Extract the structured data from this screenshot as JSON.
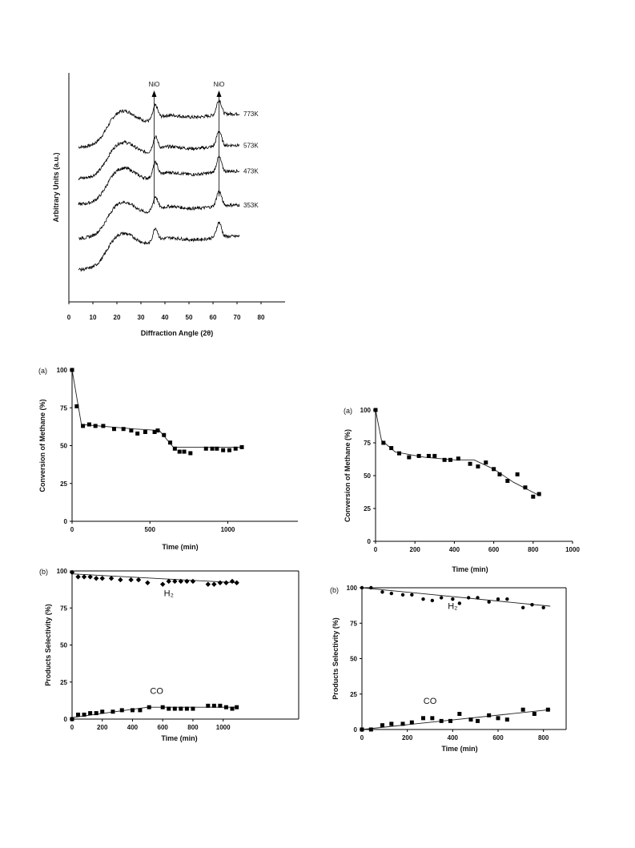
{
  "chart_data": [
    {
      "id": "xrd",
      "type": "line",
      "xlabel": "Diffraction Angle (2θ)",
      "ylabel": "Arbitrary Units (a.u.)",
      "xticks": [
        0,
        10,
        20,
        30,
        40,
        50,
        60,
        70,
        80
      ],
      "xlim": [
        0,
        90
      ],
      "peak_labels": [
        {
          "text": "NiO",
          "x": 35.5
        },
        {
          "text": "NiO",
          "x": 62.5
        }
      ],
      "series": [
        {
          "name": "773K",
          "offset": 4.5
        },
        {
          "name": "573K",
          "offset": 3.35
        },
        {
          "name": "473K",
          "offset": 2.4
        },
        {
          "name": "353K",
          "offset": 1.15
        },
        {
          "name": "",
          "offset": 0
        }
      ]
    },
    {
      "id": "conv_a_left",
      "type": "scatter",
      "panel_label": "(a)",
      "xlabel": "Time (min)",
      "ylabel": "Conversion of Methane (%)",
      "xlim": [
        0,
        1450
      ],
      "ylim": [
        0,
        100
      ],
      "xticks": [
        0,
        500,
        1000
      ],
      "yticks": [
        0,
        25,
        50,
        75,
        100
      ],
      "points": [
        [
          0,
          100
        ],
        [
          30,
          76
        ],
        [
          70,
          63
        ],
        [
          110,
          64
        ],
        [
          150,
          63
        ],
        [
          200,
          63
        ],
        [
          270,
          61
        ],
        [
          330,
          61
        ],
        [
          380,
          60
        ],
        [
          420,
          58
        ],
        [
          470,
          59
        ],
        [
          530,
          59
        ],
        [
          550,
          60
        ],
        [
          590,
          57
        ],
        [
          630,
          52
        ],
        [
          660,
          48
        ],
        [
          690,
          46
        ],
        [
          720,
          46
        ],
        [
          760,
          45
        ],
        [
          860,
          48
        ],
        [
          900,
          48
        ],
        [
          930,
          48
        ],
        [
          970,
          47
        ],
        [
          1010,
          47
        ],
        [
          1050,
          48
        ],
        [
          1090,
          49
        ]
      ],
      "fit": [
        [
          0,
          100
        ],
        [
          60,
          64
        ],
        [
          400,
          61
        ],
        [
          560,
          60
        ],
        [
          650,
          49
        ],
        [
          1100,
          49
        ]
      ]
    },
    {
      "id": "conv_a_right",
      "type": "scatter",
      "panel_label": "(a)",
      "xlabel": "Time (min)",
      "ylabel": "Conversion of Methane (%)",
      "xlim": [
        0,
        1000
      ],
      "ylim": [
        0,
        100
      ],
      "xticks": [
        0,
        200,
        400,
        600,
        800,
        1000
      ],
      "yticks": [
        0,
        25,
        50,
        75,
        100
      ],
      "points": [
        [
          0,
          100
        ],
        [
          40,
          75
        ],
        [
          80,
          71
        ],
        [
          120,
          67
        ],
        [
          170,
          64
        ],
        [
          220,
          65
        ],
        [
          270,
          65
        ],
        [
          300,
          65
        ],
        [
          350,
          62
        ],
        [
          380,
          62
        ],
        [
          420,
          63
        ],
        [
          480,
          59
        ],
        [
          520,
          57
        ],
        [
          560,
          60
        ],
        [
          600,
          55
        ],
        [
          630,
          51
        ],
        [
          670,
          46
        ],
        [
          720,
          51
        ],
        [
          760,
          41
        ],
        [
          800,
          34
        ],
        [
          830,
          36
        ]
      ],
      "fit": [
        [
          0,
          100
        ],
        [
          30,
          77
        ],
        [
          100,
          68
        ],
        [
          250,
          64
        ],
        [
          400,
          62
        ],
        [
          500,
          62
        ],
        [
          600,
          55
        ],
        [
          700,
          45
        ],
        [
          830,
          35
        ]
      ]
    },
    {
      "id": "sel_b_left",
      "type": "scatter",
      "panel_label": "(b)",
      "xlabel": "Time (min)",
      "ylabel": "Products Selectivity (%)",
      "xlim": [
        0,
        1500
      ],
      "ylim": [
        0,
        100
      ],
      "xticks": [
        0,
        200,
        400,
        600,
        800,
        1000
      ],
      "yticks": [
        0,
        25,
        50,
        75,
        100
      ],
      "annotations": [
        {
          "text": "H₂",
          "x": 640,
          "y": 83
        },
        {
          "text": "CO",
          "x": 560,
          "y": 17
        }
      ],
      "series": [
        {
          "name": "H2",
          "marker": "diamond",
          "points": [
            [
              0,
              99
            ],
            [
              40,
              96
            ],
            [
              80,
              96
            ],
            [
              120,
              96
            ],
            [
              160,
              95
            ],
            [
              200,
              95
            ],
            [
              260,
              95
            ],
            [
              320,
              94
            ],
            [
              390,
              94
            ],
            [
              440,
              94
            ],
            [
              500,
              92
            ],
            [
              600,
              91
            ],
            [
              640,
              93
            ],
            [
              680,
              93
            ],
            [
              720,
              93
            ],
            [
              760,
              93
            ],
            [
              800,
              93
            ],
            [
              900,
              91
            ],
            [
              940,
              91
            ],
            [
              980,
              92
            ],
            [
              1020,
              92
            ],
            [
              1060,
              93
            ],
            [
              1090,
              92
            ]
          ],
          "fit": [
            [
              0,
              98
            ],
            [
              1100,
              92
            ]
          ]
        },
        {
          "name": "CO",
          "marker": "square",
          "points": [
            [
              0,
              0
            ],
            [
              40,
              3
            ],
            [
              80,
              3
            ],
            [
              120,
              4
            ],
            [
              160,
              4
            ],
            [
              200,
              5
            ],
            [
              270,
              5
            ],
            [
              330,
              6
            ],
            [
              400,
              6
            ],
            [
              450,
              6
            ],
            [
              510,
              8
            ],
            [
              600,
              8
            ],
            [
              640,
              7
            ],
            [
              680,
              7
            ],
            [
              720,
              7
            ],
            [
              760,
              7
            ],
            [
              800,
              7
            ],
            [
              900,
              9
            ],
            [
              940,
              9
            ],
            [
              980,
              9
            ],
            [
              1020,
              8
            ],
            [
              1060,
              7
            ],
            [
              1090,
              8
            ]
          ],
          "fit": [
            [
              0,
              1
            ],
            [
              500,
              8
            ],
            [
              1100,
              8
            ]
          ]
        }
      ]
    },
    {
      "id": "sel_b_right",
      "type": "scatter",
      "panel_label": "(b)",
      "xlabel": "Time (min)",
      "ylabel": "Products Selectivity (%)",
      "xlim": [
        0,
        900
      ],
      "ylim": [
        0,
        100
      ],
      "xticks": [
        0,
        200,
        400,
        600,
        800
      ],
      "yticks": [
        0,
        25,
        50,
        75,
        100
      ],
      "annotations": [
        {
          "text": "H₂",
          "x": 400,
          "y": 85
        },
        {
          "text": "CO",
          "x": 300,
          "y": 18
        }
      ],
      "series": [
        {
          "name": "H2",
          "marker": "circle",
          "points": [
            [
              0,
              100
            ],
            [
              40,
              100
            ],
            [
              90,
              97
            ],
            [
              130,
              96
            ],
            [
              180,
              95
            ],
            [
              220,
              95
            ],
            [
              270,
              92
            ],
            [
              310,
              91
            ],
            [
              350,
              93
            ],
            [
              400,
              92
            ],
            [
              430,
              89
            ],
            [
              470,
              93
            ],
            [
              510,
              93
            ],
            [
              560,
              90
            ],
            [
              600,
              92
            ],
            [
              640,
              92
            ],
            [
              710,
              86
            ],
            [
              750,
              88
            ],
            [
              800,
              86
            ]
          ],
          "fit": [
            [
              0,
              100
            ],
            [
              830,
              87
            ]
          ]
        },
        {
          "name": "CO",
          "marker": "square",
          "points": [
            [
              0,
              0
            ],
            [
              40,
              0
            ],
            [
              90,
              3
            ],
            [
              130,
              4
            ],
            [
              180,
              4
            ],
            [
              220,
              5
            ],
            [
              270,
              8
            ],
            [
              310,
              8
            ],
            [
              350,
              6
            ],
            [
              390,
              6
            ],
            [
              430,
              11
            ],
            [
              480,
              7
            ],
            [
              510,
              6
            ],
            [
              560,
              10
            ],
            [
              600,
              8
            ],
            [
              640,
              7
            ],
            [
              710,
              14
            ],
            [
              760,
              11
            ],
            [
              820,
              14
            ]
          ],
          "fit": [
            [
              0,
              0
            ],
            [
              830,
              14
            ]
          ]
        }
      ]
    }
  ]
}
